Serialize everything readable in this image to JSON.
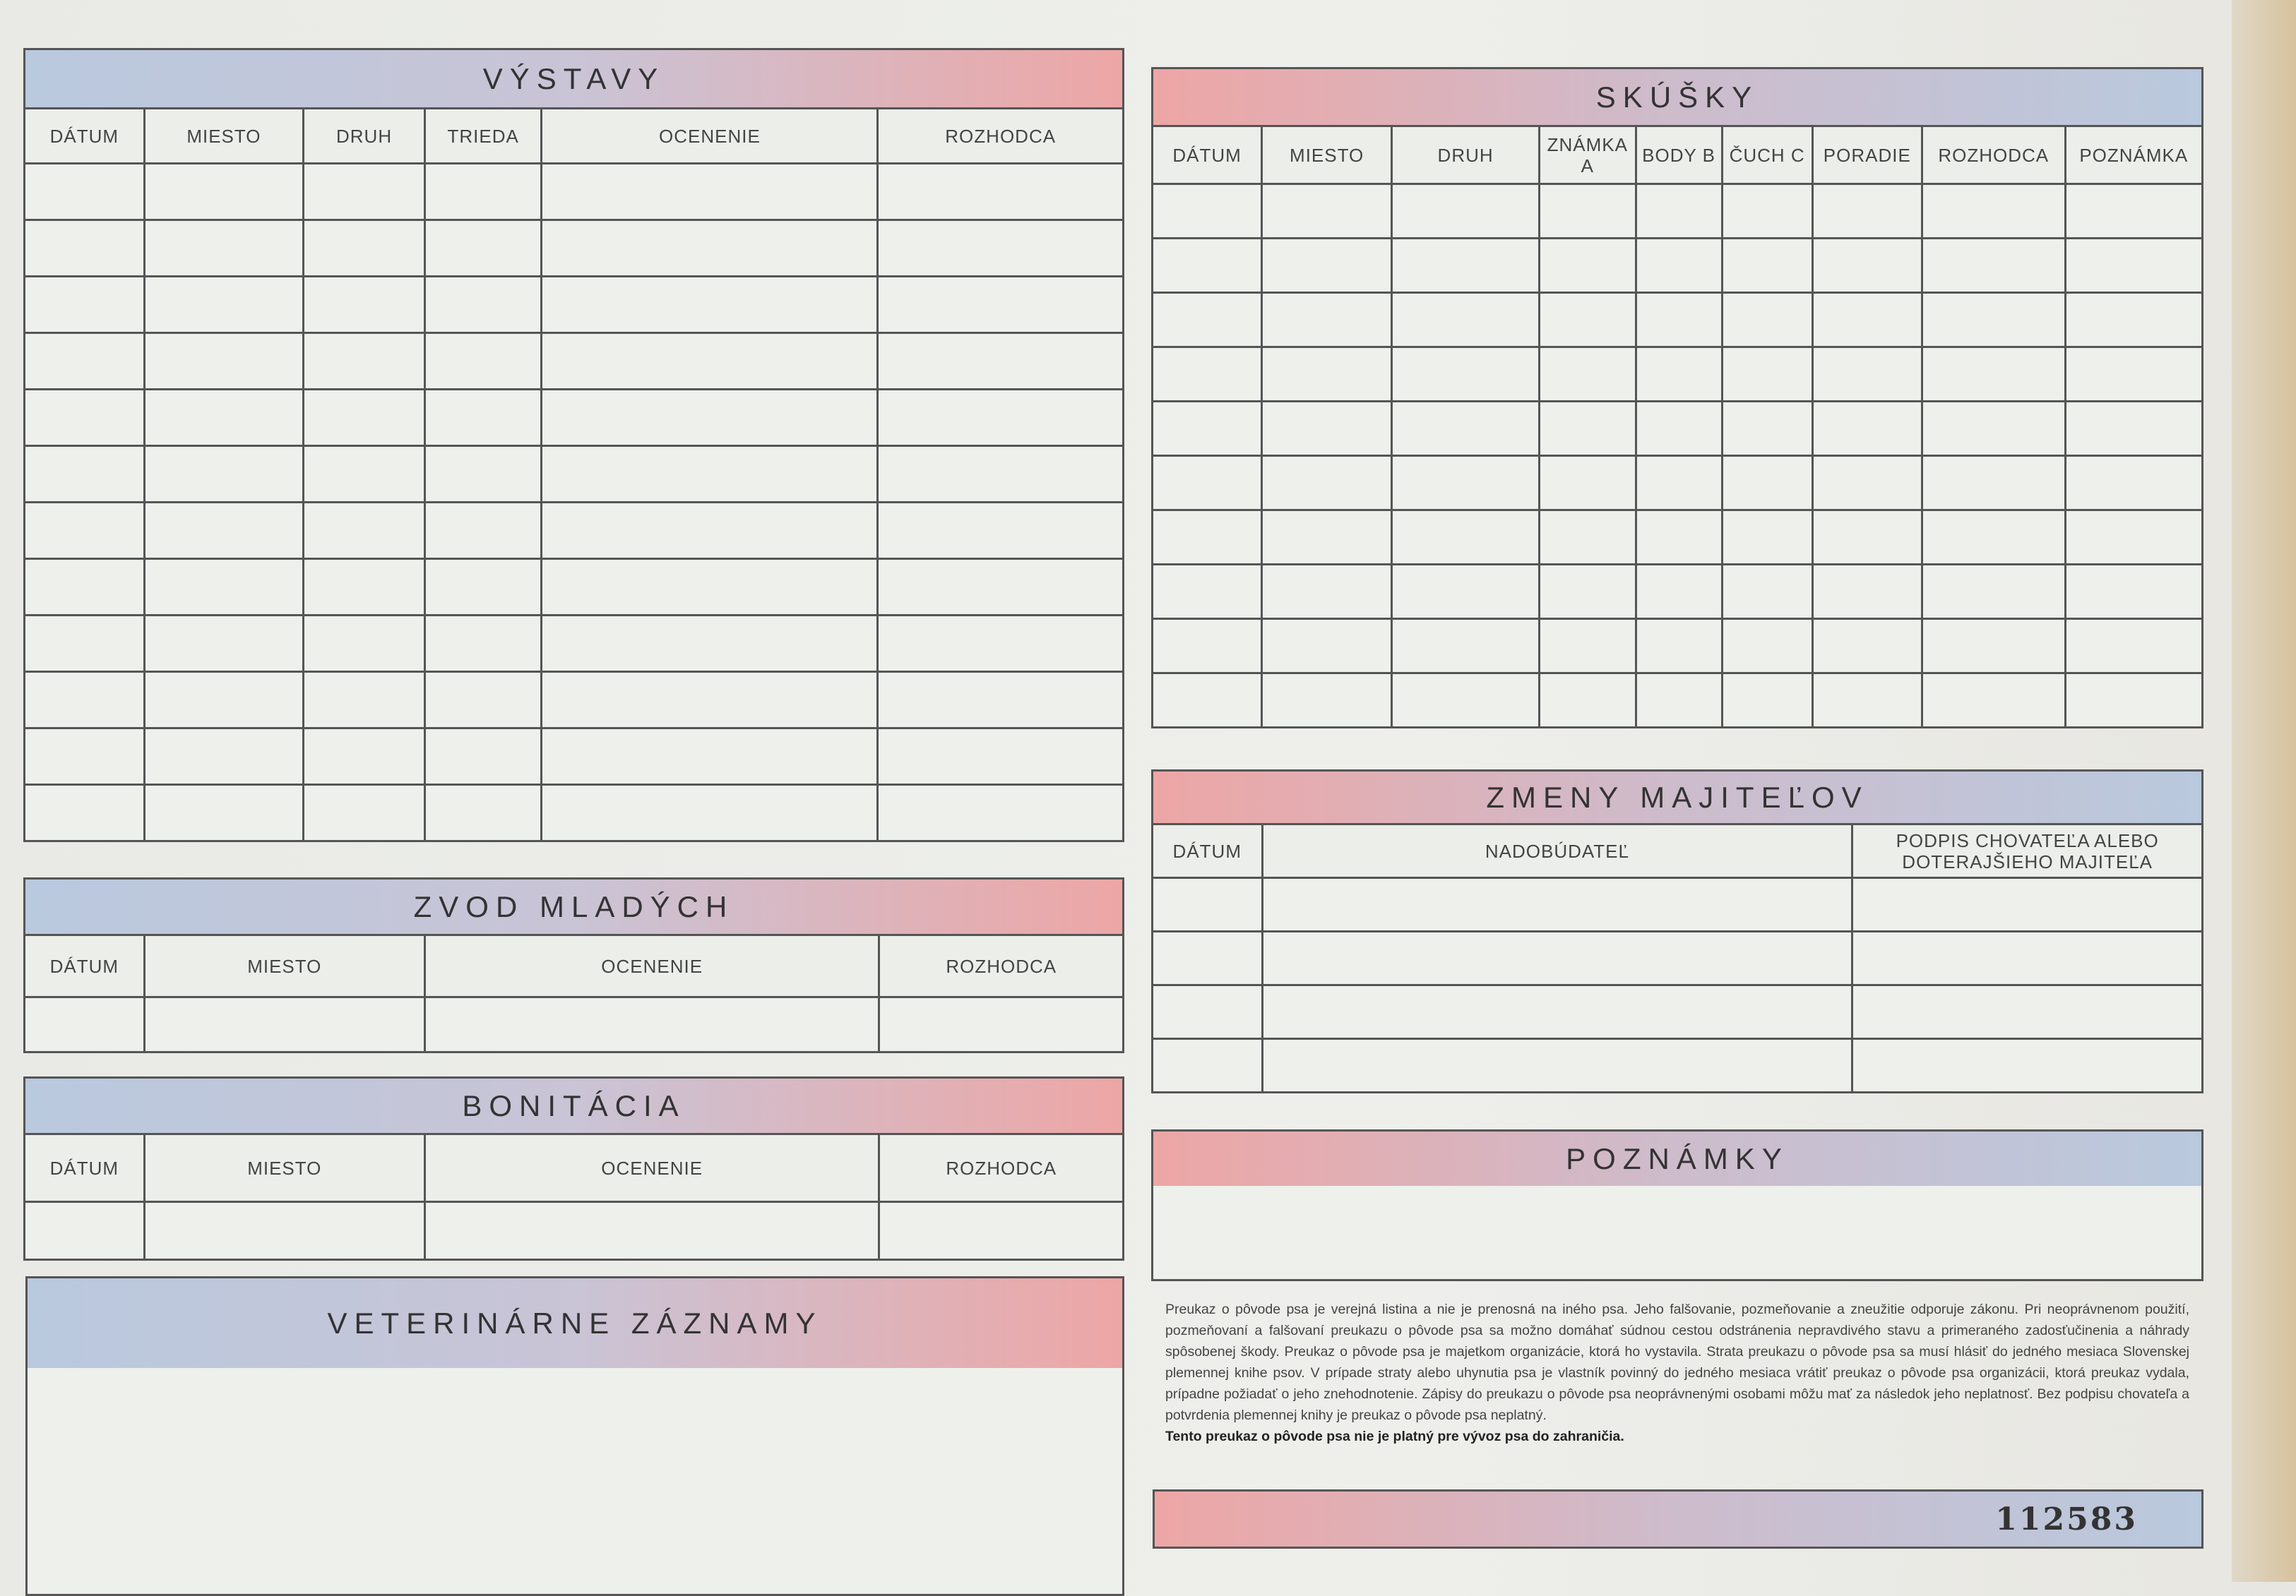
{
  "colors": {
    "band_blue": "#b9c9de",
    "band_pink": "#eda6a5",
    "line": "#555555",
    "paper": "#eeefeb"
  },
  "vystavy": {
    "title": "VÝSTAVY",
    "columns": [
      "DÁTUM",
      "MIESTO",
      "DRUH",
      "TRIEDA",
      "OCENENIE",
      "ROZHODCA"
    ]
  },
  "zvod": {
    "title": "ZVOD MLADÝCH",
    "columns": [
      "DÁTUM",
      "MIESTO",
      "OCENENIE",
      "ROZHODCA"
    ]
  },
  "bonitacia": {
    "title": "BONITÁCIA",
    "columns": [
      "DÁTUM",
      "MIESTO",
      "OCENENIE",
      "ROZHODCA"
    ]
  },
  "veterinarne": {
    "title": "VETERINÁRNE ZÁZNAMY"
  },
  "skusky": {
    "title": "SKÚŠKY",
    "columns": [
      "DÁTUM",
      "MIESTO",
      "DRUH",
      "ZNÁMKA A",
      "BODY B",
      "ČUCH C",
      "PORADIE",
      "ROZHODCA",
      "POZNÁMKA"
    ]
  },
  "zmeny": {
    "title": "ZMENY MAJITEĽOV",
    "columns": [
      "DÁTUM",
      "NADOBÚDATEĽ",
      "PODPIS CHOVATEĽA ALEBO DOTERAJŠIEHO MAJITEĽA"
    ]
  },
  "poznamky": {
    "title": "POZNÁMKY"
  },
  "legal": {
    "text": "Preukaz o pôvode psa je verejná listina a nie je prenosná na iného psa. Jeho falšovanie, pozmeňovanie a zneužitie odporuje zákonu. Pri neoprávnenom použití, pozmeňovaní a falšovaní preukazu o pôvode psa sa možno domáhať súdnou cestou odstránenia nepravdivého stavu a primeraného zadosťučinenia a náhrady spôsobenej škody. Preukaz o pôvode psa je majetkom organizácie, ktorá ho vystavila. Strata preukazu o pôvode psa sa musí hlásiť do jedného mesiaca Slovenskej plemennej knihe psov. V prípade straty alebo uhynutia psa je vlastník povinný do jedného mesiaca vrátiť preukaz o pôvode psa organizácii, ktorá preukaz vydala, prípadne požiadať o jeho znehodnotenie. Zápisy do preukazu o pôvode psa neoprávnenými osobami môžu mať za následok jeho neplatnosť. Bez podpisu chovateľa a potvrdenia plemennej knihy je preukaz o pôvode psa neplatný.",
    "bold": "Tento preukaz o pôvode psa nie je platný pre vývoz psa do zahraničia."
  },
  "serial_number": "112583"
}
